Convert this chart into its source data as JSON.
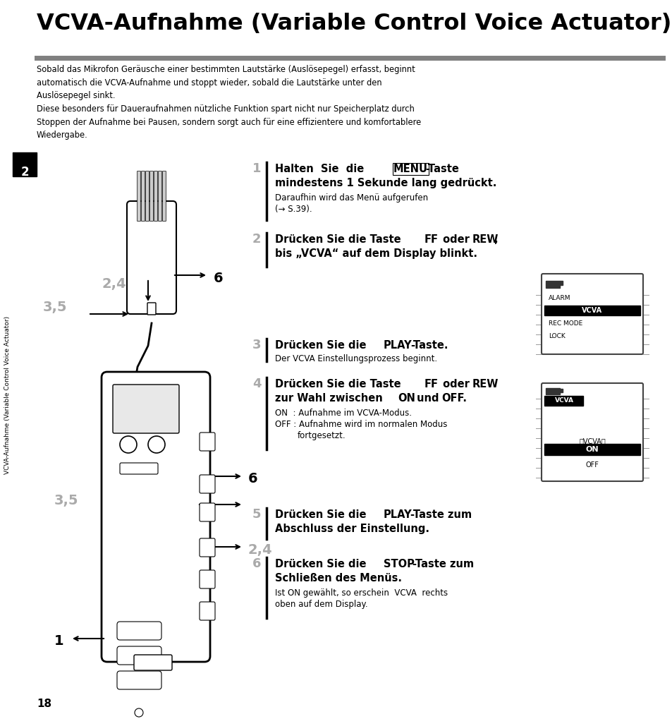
{
  "bg_color": "#ffffff",
  "title": "VCVA-Aufnahme (Variable Control Voice Actuator)",
  "page_number": "18",
  "chapter_number": "2",
  "sidebar_text": "VCVA-Aufnahme (Variable Control Voice Actuator)",
  "intro_para1": "Sobald das Mikrofon Geräusche einer bestimmten Lautstärke (Auslösepegel) erfasst, beginnt\nautomatisch die VCVA-Aufnahme und stoppt wieder, sobald die Lautstärke unter den\nAuslösepegel sinkt.",
  "intro_para2": "Diese besonders für Daueraufnahmen nützliche Funktion spart nicht nur Speicherplatz durch\nStoppen der Aufnahme bei Pausen, sondern sorgt auch für eine effizientere und komfortablere\nWiedergabe.",
  "hrule_color": "#808080",
  "step_num_color": "#aaaaaa",
  "black": "#000000",
  "white": "#ffffff",
  "gray_dark": "#333333",
  "gray_med": "#888888"
}
